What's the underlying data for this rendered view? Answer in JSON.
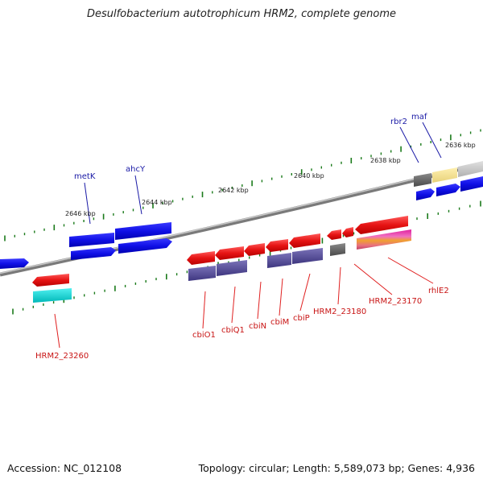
{
  "title": "Desulfobacterium autotrophicum HRM2, complete genome",
  "footer": {
    "accession": "Accession: NC_012108",
    "summary": "Topology: circular; Length: 5,589,073 bp; Genes: 4,936"
  },
  "colors": {
    "backbone": "#8a8a8a",
    "tick": "#1a7a1a",
    "tick_label": "#222222",
    "label_blue": "#1a1aa6",
    "label_red": "#c81414",
    "leader_blue": "#1a1aa6",
    "leader_red": "#e02020"
  },
  "scale_labels": [
    "2646 kbp",
    "2644 kbp",
    "2642 kbp",
    "2640 kbp",
    "2638 kbp",
    "2636 kbp"
  ],
  "gene_labels_forward": [
    "metK",
    "ahcY",
    "rbr2",
    "maf"
  ],
  "gene_labels_reverse": [
    "HRM2_23260",
    "cbiO1",
    "cbiQ1",
    "cbiN",
    "cbiM",
    "cbiP",
    "HRM2_23180",
    "HRM2_23170",
    "rhlE2"
  ]
}
